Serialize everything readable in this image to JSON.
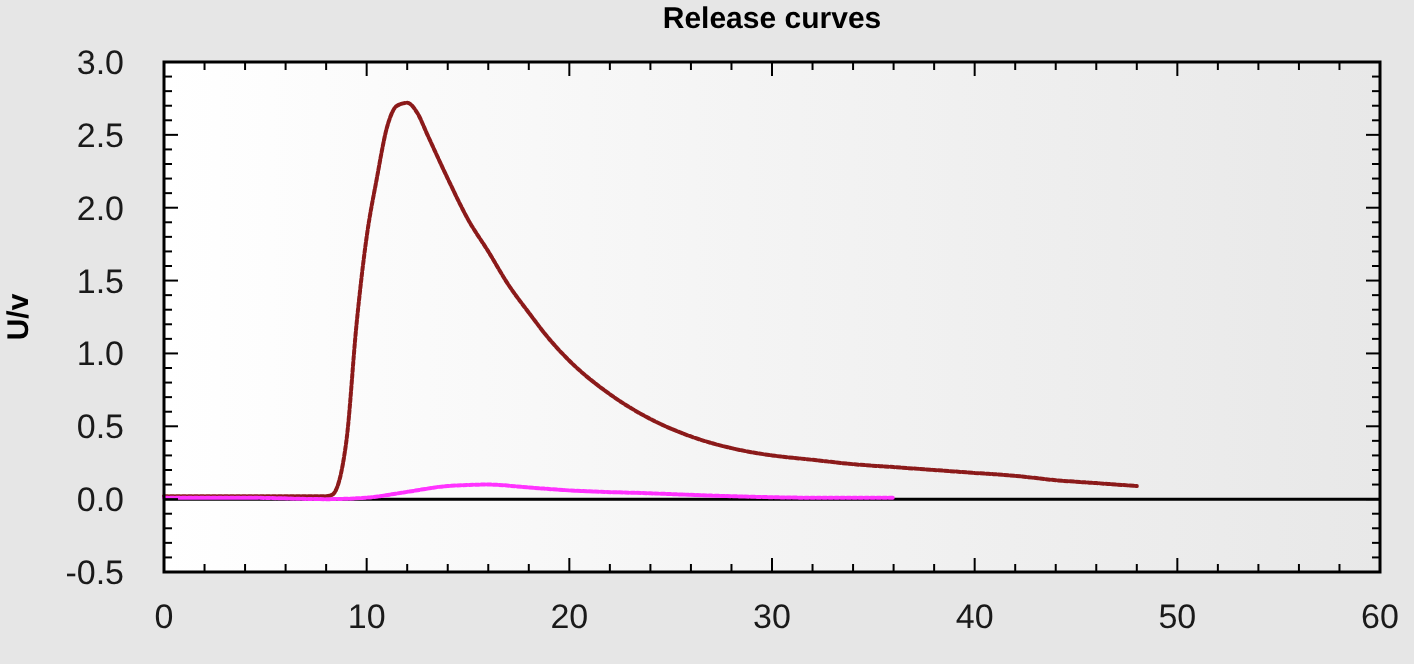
{
  "chart_data": {
    "type": "line",
    "title": "Release curves",
    "ylabel": "U/v",
    "xlim": [
      0,
      60
    ],
    "ylim": [
      -0.5,
      3.0
    ],
    "xticks": [
      0,
      {
        "value": 2,
        "label": null
      },
      {
        "value": 4,
        "label": null
      },
      {
        "value": 6,
        "label": null
      },
      {
        "value": 8,
        "label": null
      },
      10,
      {
        "value": 12,
        "label": null
      },
      {
        "value": 14,
        "label": null
      },
      {
        "value": 16,
        "label": null
      },
      {
        "value": 18,
        "label": null
      },
      20,
      {
        "value": 22,
        "label": null
      },
      {
        "value": 24,
        "label": null
      },
      {
        "value": 26,
        "label": null
      },
      {
        "value": 28,
        "label": null
      },
      30,
      {
        "value": 32,
        "label": null
      },
      {
        "value": 34,
        "label": null
      },
      {
        "value": 36,
        "label": null
      },
      {
        "value": 38,
        "label": null
      },
      40,
      {
        "value": 42,
        "label": null
      },
      {
        "value": 44,
        "label": null
      },
      {
        "value": 46,
        "label": null
      },
      {
        "value": 48,
        "label": null
      },
      50,
      {
        "value": 52,
        "label": null
      },
      {
        "value": 54,
        "label": null
      },
      {
        "value": 56,
        "label": null
      },
      {
        "value": 58,
        "label": null
      },
      60
    ],
    "yticks": [
      {
        "value": -0.5,
        "label": "-0.5"
      },
      {
        "value": -0.4,
        "label": null
      },
      {
        "value": -0.3,
        "label": null
      },
      {
        "value": -0.2,
        "label": null
      },
      {
        "value": -0.1,
        "label": null
      },
      {
        "value": 0,
        "label": "0.0"
      },
      {
        "value": 0.1,
        "label": null
      },
      {
        "value": 0.2,
        "label": null
      },
      {
        "value": 0.3,
        "label": null
      },
      {
        "value": 0.4,
        "label": null
      },
      {
        "value": 0.5,
        "label": "0.5"
      },
      {
        "value": 0.6,
        "label": null
      },
      {
        "value": 0.7,
        "label": null
      },
      {
        "value": 0.8,
        "label": null
      },
      {
        "value": 0.9,
        "label": null
      },
      {
        "value": 1,
        "label": "1.0"
      },
      {
        "value": 1.1,
        "label": null
      },
      {
        "value": 1.2,
        "label": null
      },
      {
        "value": 1.3,
        "label": null
      },
      {
        "value": 1.4,
        "label": null
      },
      {
        "value": 1.5,
        "label": "1.5"
      },
      {
        "value": 1.6,
        "label": null
      },
      {
        "value": 1.7,
        "label": null
      },
      {
        "value": 1.8,
        "label": null
      },
      {
        "value": 1.9,
        "label": null
      },
      {
        "value": 2,
        "label": "2.0"
      },
      {
        "value": 2.1,
        "label": null
      },
      {
        "value": 2.2,
        "label": null
      },
      {
        "value": 2.3,
        "label": null
      },
      {
        "value": 2.4,
        "label": null
      },
      {
        "value": 2.5,
        "label": "2.5"
      },
      {
        "value": 2.6,
        "label": null
      },
      {
        "value": 2.7,
        "label": null
      },
      {
        "value": 2.8,
        "label": null
      },
      {
        "value": 2.9,
        "label": null
      },
      {
        "value": 3,
        "label": "3.0"
      }
    ],
    "grid": false,
    "line_style": "dotted",
    "ref_lines": [
      {
        "axis": "y",
        "value": 0,
        "color": "#000000"
      }
    ],
    "series": [
      {
        "color": "#8b1a1a",
        "x": [
          0,
          4,
          8,
          8.3,
          9,
          9.5,
          10,
          10.5,
          11,
          11.5,
          12,
          12.5,
          13,
          14,
          15,
          16,
          17,
          18,
          19,
          20,
          22,
          24,
          26,
          28,
          30,
          32,
          34,
          36,
          38,
          40,
          42,
          44,
          46,
          48
        ],
        "values": [
          0.02,
          0.02,
          0.02,
          0.03,
          0.4,
          1.2,
          1.8,
          2.2,
          2.55,
          2.7,
          2.72,
          2.65,
          2.5,
          2.2,
          1.92,
          1.7,
          1.47,
          1.28,
          1.1,
          0.95,
          0.72,
          0.55,
          0.43,
          0.35,
          0.3,
          0.27,
          0.24,
          0.22,
          0.2,
          0.18,
          0.16,
          0.13,
          0.11,
          0.09
        ]
      },
      {
        "color": "#ff33ff",
        "x": [
          0,
          4,
          8,
          10,
          12,
          14,
          16,
          18,
          20,
          24,
          28,
          32,
          36
        ],
        "values": [
          0.01,
          0.01,
          0.0,
          0.01,
          0.05,
          0.09,
          0.1,
          0.08,
          0.06,
          0.04,
          0.02,
          0.01,
          0.01
        ]
      }
    ]
  }
}
